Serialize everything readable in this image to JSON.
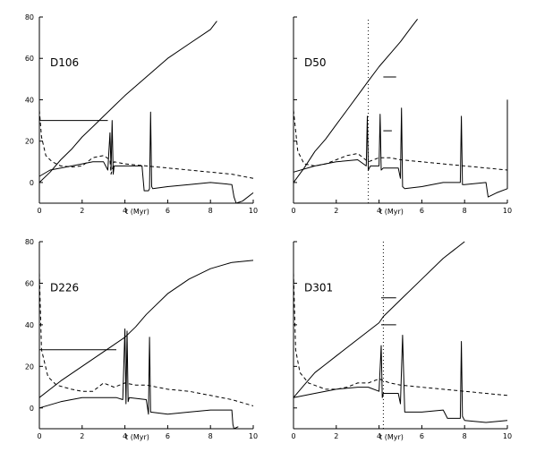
{
  "chart_data": [
    {
      "type": "line",
      "title": "D106",
      "xlabel": "t (Myr)",
      "ylabel": "",
      "xlim": [
        0,
        10
      ],
      "ylim": [
        -10,
        80
      ],
      "xticks": [
        "0",
        "2",
        "4",
        "6",
        "8",
        "10"
      ],
      "yticks": [
        "0",
        "20",
        "40",
        "60",
        "80"
      ],
      "series": [
        {
          "style": "solid",
          "x": [
            0,
            0.5,
            1,
            1.5,
            2,
            2.5,
            3,
            3.5,
            4,
            5,
            6,
            7,
            8,
            8.3
          ],
          "y": [
            0,
            5,
            11,
            16,
            22,
            27,
            32,
            37,
            42,
            51,
            60,
            67,
            74,
            78
          ]
        },
        {
          "style": "solid",
          "x": [
            0,
            0.5,
            1,
            2,
            2.5,
            3,
            3.2,
            3.3,
            3.35,
            3.4,
            3.45,
            3.5,
            3.6,
            4.5,
            4.8,
            4.9,
            5.0,
            5.1,
            5.15,
            5.2,
            5.25,
            5.3,
            6,
            7,
            8,
            9,
            9.1,
            9.2,
            9.5,
            10
          ],
          "y": [
            3,
            6,
            7,
            9,
            10,
            10,
            6,
            24,
            6,
            30,
            4,
            8,
            8,
            8,
            8,
            -4,
            -4,
            -4,
            -3,
            34,
            -2,
            -3,
            -2,
            -1,
            0,
            -1,
            -7,
            -10,
            -9,
            -5
          ]
        },
        {
          "style": "dashed",
          "x": [
            0,
            0.1,
            0.3,
            0.6,
            1,
            1.5,
            2,
            2.5,
            3,
            3.3,
            3.35,
            3.5,
            4,
            5,
            6,
            7,
            8,
            9,
            10
          ],
          "y": [
            35,
            22,
            13,
            10,
            8,
            7.5,
            8,
            12,
            13,
            11,
            4,
            10,
            9,
            8,
            7,
            6,
            5,
            4,
            2
          ]
        },
        {
          "style": "hline",
          "x": [
            0,
            3.2
          ],
          "y": [
            30,
            30
          ]
        }
      ]
    },
    {
      "type": "line",
      "title": "D50",
      "xlabel": "t (Myr)",
      "ylabel": "",
      "xlim": [
        0,
        10
      ],
      "ylim": [
        -10,
        80
      ],
      "xticks": [
        "0",
        "2",
        "4",
        "6",
        "8",
        "10"
      ],
      "yticks": [],
      "series": [
        {
          "style": "solid",
          "x": [
            0,
            0.5,
            1,
            1.5,
            2,
            2.5,
            3,
            3.5,
            4,
            4.5,
            5,
            5.5,
            5.8
          ],
          "y": [
            0,
            7,
            15,
            21,
            28,
            35,
            42,
            49,
            56,
            62,
            68,
            75,
            79
          ]
        },
        {
          "style": "solid",
          "x": [
            0,
            1,
            2,
            3,
            3.4,
            3.45,
            3.5,
            3.6,
            4.0,
            4.05,
            4.1,
            4.2,
            4.9,
            5.0,
            5.05,
            5.1,
            5.2,
            6,
            7,
            7.8,
            7.85,
            7.9,
            8,
            9,
            9.1,
            9.5,
            10,
            10
          ],
          "y": [
            5,
            8,
            10,
            11,
            8,
            32,
            6,
            8,
            8,
            33,
            6,
            7,
            7,
            2,
            36,
            -2,
            -3,
            -2,
            0,
            0,
            32,
            -1,
            -1,
            0,
            -7,
            -5,
            -3,
            40
          ]
        },
        {
          "style": "dashed",
          "x": [
            0,
            0.2,
            0.5,
            1,
            1.5,
            2,
            2.5,
            3,
            3.5,
            4,
            4.5,
            5,
            6,
            7,
            8,
            9,
            10
          ],
          "y": [
            35,
            15,
            9,
            8,
            9,
            11,
            13,
            14,
            10,
            12,
            12,
            11,
            10,
            9,
            8,
            7,
            6
          ]
        },
        {
          "style": "hline",
          "x": [
            4.2,
            4.8
          ],
          "y": [
            51,
            51
          ]
        },
        {
          "style": "hline",
          "x": [
            4.2,
            4.6
          ],
          "y": [
            25,
            25
          ]
        },
        {
          "style": "vline-dotted",
          "x": [
            3.5,
            3.5
          ],
          "y": [
            -10,
            80
          ]
        }
      ]
    },
    {
      "type": "line",
      "title": "D226",
      "xlabel": "t (Myr)",
      "ylabel": "",
      "xlim": [
        0,
        10
      ],
      "ylim": [
        -10,
        80
      ],
      "xticks": [
        "0",
        "2",
        "4",
        "6",
        "8",
        "10"
      ],
      "yticks": [
        "0",
        "20",
        "40",
        "60",
        "80"
      ],
      "series": [
        {
          "style": "solid",
          "x": [
            0,
            0.5,
            1,
            2,
            3,
            4,
            4.5,
            5,
            6,
            7,
            8,
            9,
            10
          ],
          "y": [
            5,
            9,
            13,
            20,
            27,
            34,
            39,
            45,
            55,
            62,
            67,
            70,
            71
          ]
        },
        {
          "style": "solid",
          "x": [
            0,
            1,
            2,
            3,
            3.6,
            3.9,
            4.0,
            4.05,
            4.1,
            4.15,
            4.2,
            5.0,
            5.1,
            5.15,
            5.2,
            6,
            7,
            8,
            9,
            9.05,
            9.1,
            9.3
          ],
          "y": [
            0,
            3,
            5,
            5,
            5,
            4,
            38,
            2,
            37,
            3,
            5,
            4,
            -3,
            34,
            -2,
            -3,
            -2,
            -1,
            -1,
            -8,
            -10,
            -9
          ]
        },
        {
          "style": "dashed",
          "x": [
            0,
            0.1,
            0.4,
            0.8,
            1.5,
            2,
            2.5,
            3,
            3.5,
            4,
            4.5,
            5,
            6,
            7,
            8,
            9,
            10
          ],
          "y": [
            65,
            28,
            15,
            11,
            9,
            8,
            8,
            12,
            10,
            12,
            11,
            11,
            9,
            8,
            6,
            4,
            1
          ]
        },
        {
          "style": "hline",
          "x": [
            0,
            3.6
          ],
          "y": [
            28,
            28
          ]
        }
      ]
    },
    {
      "type": "line",
      "title": "D301",
      "xlabel": "t (Myr)",
      "ylabel": "",
      "xlim": [
        0,
        10
      ],
      "ylim": [
        -10,
        80
      ],
      "xticks": [
        "0",
        "2",
        "4",
        "6",
        "8",
        "10"
      ],
      "yticks": [],
      "series": [
        {
          "style": "solid",
          "x": [
            0,
            0.5,
            1,
            1.5,
            2,
            3,
            4,
            4.2,
            5,
            6,
            7,
            8
          ],
          "y": [
            5,
            11,
            17,
            21,
            25,
            33,
            41,
            44,
            52,
            62,
            72,
            80
          ]
        },
        {
          "style": "solid",
          "x": [
            0,
            1,
            2,
            3,
            3.5,
            4.0,
            4.1,
            4.15,
            4.2,
            4.3,
            4.9,
            5.0,
            5.1,
            5.2,
            5.3,
            6,
            7,
            7.2,
            7.3,
            7.8,
            7.85,
            7.9,
            8,
            9,
            10
          ],
          "y": [
            5,
            7,
            9,
            10,
            10,
            8,
            30,
            5,
            7,
            7,
            7,
            2,
            35,
            -2,
            -2,
            -2,
            -1,
            -5,
            -5,
            -5,
            32,
            -4,
            -6,
            -7,
            -6
          ]
        },
        {
          "style": "dashed",
          "x": [
            0,
            0.1,
            0.3,
            0.7,
            1.5,
            2,
            2.5,
            3,
            3.5,
            4,
            4.5,
            5,
            6,
            7,
            8,
            9,
            10
          ],
          "y": [
            65,
            28,
            17,
            12,
            9,
            9,
            10,
            12,
            12,
            14,
            12,
            11,
            10,
            9,
            8,
            7,
            6
          ]
        },
        {
          "style": "hline",
          "x": [
            4.1,
            4.8
          ],
          "y": [
            53,
            53
          ]
        },
        {
          "style": "hline",
          "x": [
            4.1,
            4.8
          ],
          "y": [
            40,
            40
          ]
        },
        {
          "style": "vline-dotted",
          "x": [
            4.2,
            4.2
          ],
          "y": [
            -10,
            80
          ]
        }
      ]
    }
  ]
}
